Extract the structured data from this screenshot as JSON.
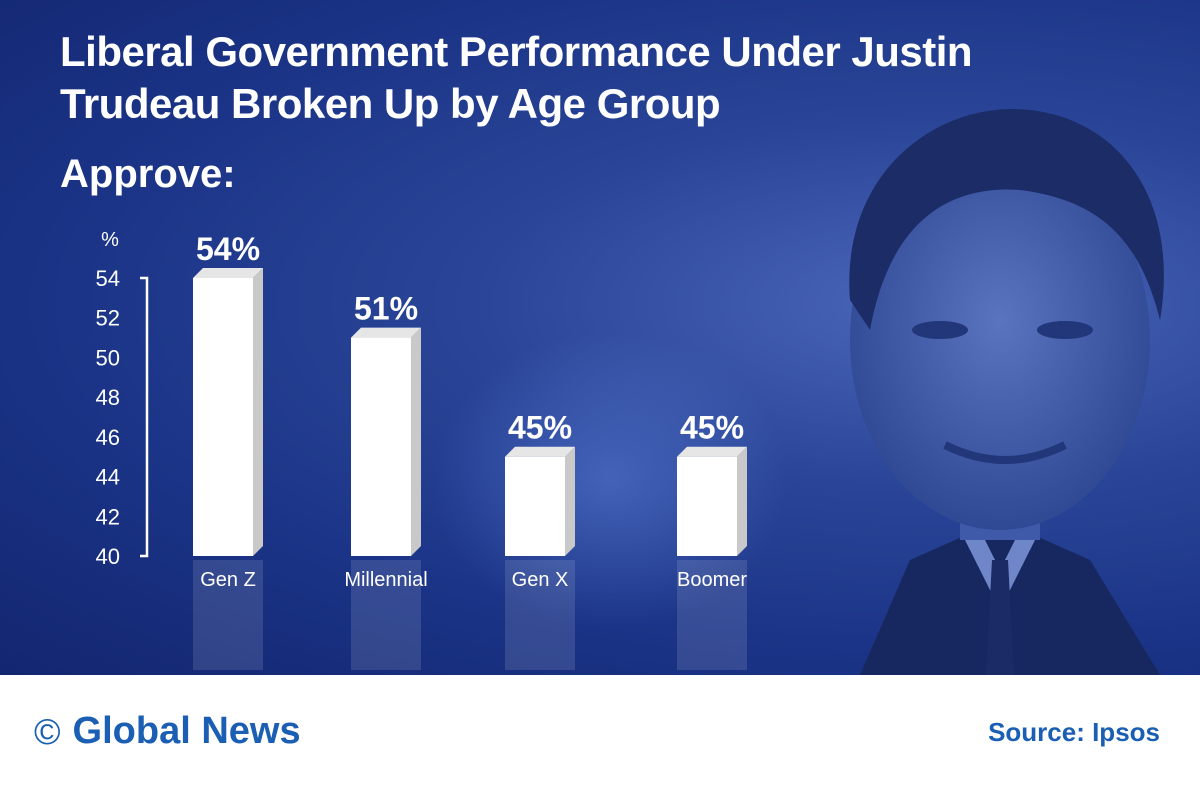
{
  "header": {
    "title": "Liberal Government Performance Under Justin Trudeau Broken Up by Age Group",
    "subtitle": "Approve:"
  },
  "chart_data": {
    "type": "bar",
    "title": "Liberal Government Performance Under Justin Trudeau Broken Up by Age Group",
    "subtitle": "Approve:",
    "ylabel": "%",
    "xlabel": "",
    "categories": [
      "Gen Z",
      "Millennial",
      "Gen X",
      "Boomer"
    ],
    "values": [
      54,
      51,
      45,
      45
    ],
    "value_labels": [
      "54%",
      "51%",
      "45%",
      "45%"
    ],
    "ylim": [
      40,
      54
    ],
    "yticks": [
      40,
      42,
      44,
      46,
      48,
      50,
      52,
      54
    ],
    "grid": false,
    "legend": "none",
    "colors": {
      "bar": "#ffffff",
      "bar_side": "#c9c9c9",
      "text": "#ffffff"
    }
  },
  "footer": {
    "brand_icon": "copyright-icon",
    "brand": "Global News",
    "source": "Source: Ipsos",
    "color": "#1a5fb4"
  }
}
